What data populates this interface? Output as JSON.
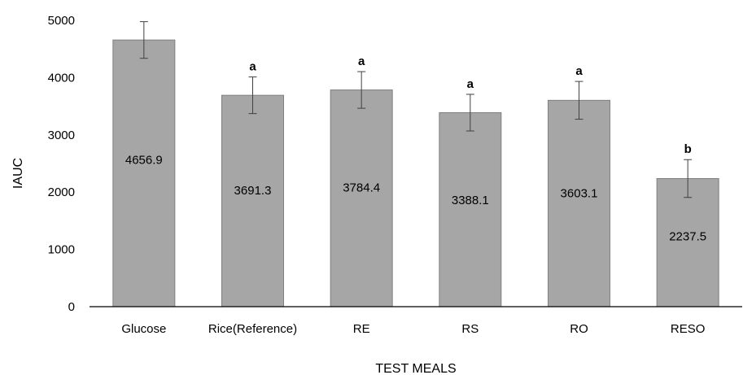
{
  "chart_data": {
    "type": "bar",
    "title": "",
    "xlabel": "TEST MEALS",
    "ylabel": "IAUC",
    "ylim": [
      0,
      5000
    ],
    "yticks": [
      0,
      1000,
      2000,
      3000,
      4000,
      5000
    ],
    "categories": [
      "Glucose",
      "Rice(Reference)",
      "RE",
      "RS",
      "RO",
      "RESO"
    ],
    "values": [
      4656.9,
      3691.3,
      3784.4,
      3388.1,
      3603.1,
      2237.5
    ],
    "value_labels": [
      "4656.9",
      "3691.3",
      "3784.4",
      "3388.1",
      "3603.1",
      "2237.5"
    ],
    "error": [
      320,
      320,
      320,
      320,
      330,
      330
    ],
    "significance": [
      "",
      "a",
      "a",
      "a",
      "a",
      "b"
    ],
    "grid": false,
    "legend": "none",
    "bar_color": "#a6a6a6",
    "bar_edge_color": "#7f7f7f"
  }
}
